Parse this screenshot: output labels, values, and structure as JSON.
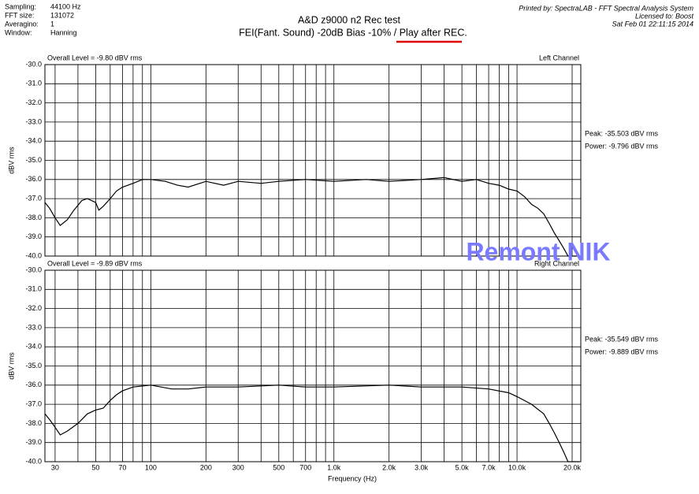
{
  "header": {
    "info": [
      [
        "Sampling:",
        "44100 Hz"
      ],
      [
        "FFT size:",
        "131072"
      ],
      [
        "Averagino:",
        "1"
      ],
      [
        "Window:",
        "Hanning"
      ]
    ],
    "title": "A&D z9000 n2  Rec test",
    "subtitle": "FEI(Fant. Sound) -20dB Bias -10% / Play after REC.",
    "printed_by": "Printed by: SpectraLAB - FFT Spectral Analysis System",
    "licensed_to": "Licensed to: Boost",
    "date": "Sat Feb 01 22:11:15 2014",
    "watermark": "Remont NIK"
  },
  "chart_data": [
    {
      "type": "line",
      "overall_level": "Overall Level = -9.80 dBV rms",
      "channel": "Left Channel",
      "peak": "Peak: -35.503 dBV rms",
      "power": "Power: -9.796 dBV rms",
      "ylabel": "dBV rms",
      "color": "#000000",
      "x": [
        26.4,
        28,
        30,
        32,
        35,
        38,
        42,
        45,
        50,
        52,
        55,
        60,
        65,
        70,
        80,
        90,
        100,
        120,
        140,
        160,
        200,
        250,
        300,
        400,
        500,
        700,
        1000,
        1500,
        2000,
        3000,
        4000,
        5000,
        6000,
        7000,
        8000,
        9000,
        10000,
        11000,
        12000,
        13000,
        14000,
        15000,
        16000,
        17000,
        18000,
        19000,
        22000
      ],
      "values": [
        -37.2,
        -37.5,
        -38.0,
        -38.4,
        -38.1,
        -37.6,
        -37.1,
        -37.0,
        -37.2,
        -37.6,
        -37.4,
        -37.0,
        -36.6,
        -36.4,
        -36.2,
        -36.0,
        -36.0,
        -36.1,
        -36.3,
        -36.4,
        -36.1,
        -36.3,
        -36.1,
        -36.2,
        -36.1,
        -36.0,
        -36.1,
        -36.0,
        -36.1,
        -36.0,
        -35.9,
        -36.1,
        -36.0,
        -36.2,
        -36.3,
        -36.5,
        -36.6,
        -36.9,
        -37.3,
        -37.5,
        -37.8,
        -38.3,
        -38.8,
        -39.2,
        -39.6,
        -40.0,
        -40.0
      ],
      "ylim": [
        -40,
        -30
      ],
      "yticks": [
        {
          "value": -30,
          "label": "-30.0"
        },
        {
          "value": -31,
          "label": "-31.0"
        },
        {
          "value": -32,
          "label": "-32.0"
        },
        {
          "value": -33,
          "label": "-33.0"
        },
        {
          "value": -34,
          "label": "-34.0"
        },
        {
          "value": -35,
          "label": "-35.0"
        },
        {
          "value": -36,
          "label": "-36.0"
        },
        {
          "value": -37,
          "label": "-37.0"
        },
        {
          "value": -38,
          "label": "-38.0"
        },
        {
          "value": -39,
          "label": "-39.0"
        },
        {
          "value": -40,
          "label": "-40.0"
        }
      ]
    },
    {
      "type": "line",
      "overall_level": "Overall Level = -9.89 dBV rms",
      "channel": "Right Channel",
      "peak": "Peak: -35.549 dBV rms",
      "power": "Power: -9.889 dBV rms",
      "ylabel": "dBV rms",
      "xlabel": "Frequency (Hz)",
      "color": "#000000",
      "x": [
        26.4,
        28,
        30,
        32,
        35,
        40,
        45,
        50,
        55,
        60,
        65,
        70,
        80,
        100,
        130,
        160,
        200,
        300,
        500,
        700,
        1000,
        2000,
        3000,
        5000,
        7000,
        9000,
        10000,
        12000,
        14000,
        15000,
        16000,
        17000,
        18000,
        19000,
        22000
      ],
      "values": [
        -37.5,
        -37.8,
        -38.2,
        -38.6,
        -38.4,
        -38.0,
        -37.5,
        -37.3,
        -37.2,
        -36.8,
        -36.5,
        -36.3,
        -36.1,
        -36.0,
        -36.2,
        -36.2,
        -36.1,
        -36.1,
        -36.0,
        -36.1,
        -36.1,
        -36.0,
        -36.1,
        -36.1,
        -36.2,
        -36.4,
        -36.6,
        -37.0,
        -37.5,
        -38.0,
        -38.5,
        -39.0,
        -39.5,
        -40.0,
        -40.0
      ],
      "ylim": [
        -40,
        -30
      ],
      "yticks": [
        {
          "value": -30,
          "label": "-30.0"
        },
        {
          "value": -31,
          "label": "-31.0"
        },
        {
          "value": -32,
          "label": "-32.0"
        },
        {
          "value": -33,
          "label": "-33.0"
        },
        {
          "value": -34,
          "label": "-34.0"
        },
        {
          "value": -35,
          "label": "-35.0"
        },
        {
          "value": -36,
          "label": "-36.0"
        },
        {
          "value": -37,
          "label": "-37.0"
        },
        {
          "value": -38,
          "label": "-38.0"
        },
        {
          "value": -39,
          "label": "-39.0"
        },
        {
          "value": -40,
          "label": "-40.0"
        }
      ],
      "xscale": "log",
      "xlim": [
        26.4,
        22300
      ],
      "xticks": [
        30,
        50,
        70,
        100,
        200,
        300,
        500,
        700,
        {
          "value": 1000,
          "label": "1.0k"
        },
        {
          "value": 2000,
          "label": "2.0k"
        },
        {
          "value": 3000,
          "label": "3.0k"
        },
        {
          "value": 5000,
          "label": "5.0k"
        },
        {
          "value": 7000,
          "label": "7.0k"
        },
        {
          "value": 10000,
          "label": "10.0k"
        },
        {
          "value": 20000,
          "label": "20.0k"
        }
      ],
      "xminorticks": [
        40,
        60,
        80,
        90,
        400,
        600,
        800,
        900,
        4000,
        6000,
        8000,
        9000
      ]
    }
  ]
}
